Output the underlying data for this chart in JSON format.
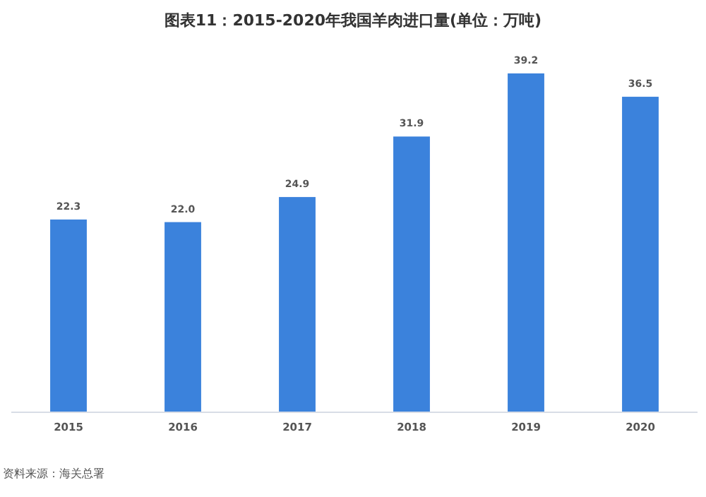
{
  "chart_data": {
    "type": "bar",
    "title": "图表11：2015-2020年我国羊肉进口量(单位：万吨)",
    "categories": [
      "2015",
      "2016",
      "2017",
      "2018",
      "2019",
      "2020"
    ],
    "series": [
      {
        "color": "#3b82dc",
        "values": [
          22.3,
          22.0,
          24.9,
          31.9,
          39.2,
          36.5
        ],
        "value_labels": [
          "22.3",
          "22.0",
          "24.9",
          "31.9",
          "39.2",
          "36.5"
        ]
      }
    ],
    "tick_labels": "x",
    "annotations": [
      "资料来源：海关总署"
    ]
  }
}
